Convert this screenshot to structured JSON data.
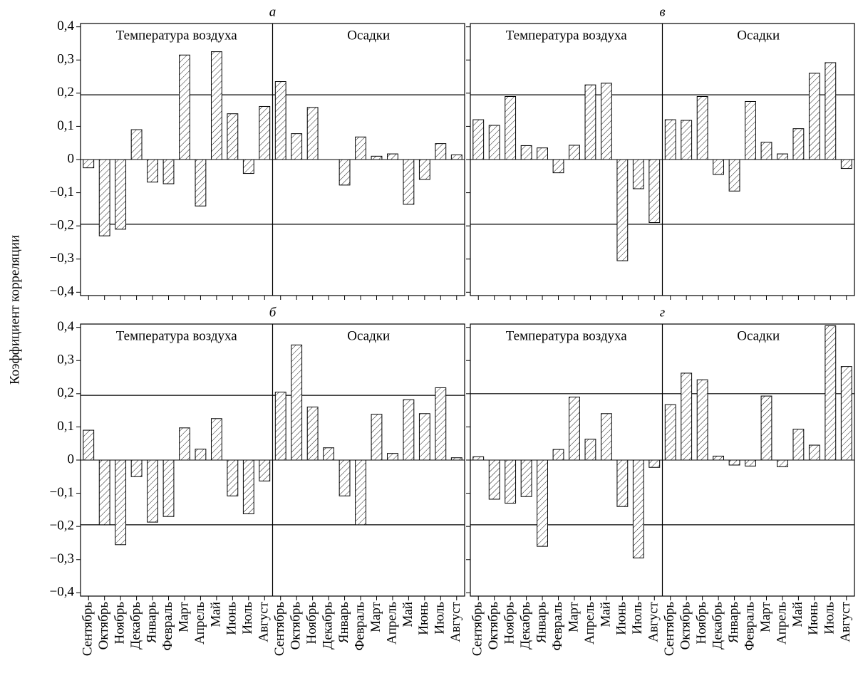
{
  "ylabel": "Коэффициент корреляции",
  "chart_data": [
    {
      "type": "bar",
      "title": "а",
      "series": [
        {
          "name": "Температура воздуха",
          "values": [
            -0.025,
            -0.23,
            -0.21,
            0.09,
            -0.068,
            -0.073,
            0.315,
            -0.14,
            0.325,
            0.138,
            -0.042,
            0.16
          ]
        },
        {
          "name": "Осадки",
          "values": [
            0.235,
            0.078,
            0.157,
            0,
            -0.077,
            0.068,
            0.01,
            0.017,
            -0.135,
            -0.06,
            0.048,
            0.014
          ]
        }
      ],
      "ylim": [
        -0.41,
        0.41
      ],
      "yticks": [
        {
          "value": -0.4,
          "label": "−0,4"
        },
        {
          "value": -0.3,
          "label": "−0,3"
        },
        {
          "value": -0.2,
          "label": "−0,2"
        },
        {
          "value": -0.1,
          "label": "−0,1"
        },
        0,
        {
          "value": 0.1,
          "label": "0,1"
        },
        {
          "value": 0.2,
          "label": "0,2"
        },
        {
          "value": 0.3,
          "label": "0,3"
        },
        {
          "value": 0.4,
          "label": "0,4"
        }
      ],
      "hlines": [
        0.195,
        -0.195
      ]
    },
    {
      "type": "bar",
      "title": "в",
      "series": [
        {
          "name": "Температура воздуха",
          "values": [
            0.12,
            0.103,
            0.19,
            0.042,
            0.035,
            -0.04,
            0.043,
            0.225,
            0.23,
            -0.305,
            -0.088,
            -0.19
          ]
        },
        {
          "name": "Осадки",
          "values": [
            0.12,
            0.118,
            0.19,
            -0.045,
            -0.095,
            0.175,
            0.052,
            0.017,
            0.093,
            0.26,
            0.292,
            -0.027
          ]
        }
      ],
      "ylim": [
        -0.41,
        0.41
      ],
      "yticks": [
        -0.4,
        -0.3,
        -0.2,
        -0.1,
        0,
        0.1,
        0.2,
        0.3,
        0.4
      ],
      "hlines": [
        0.195,
        -0.195
      ]
    },
    {
      "type": "bar",
      "title": "б",
      "categories": [
        "Сентябрь",
        "Октябрь",
        "Ноябрь",
        "Декабрь",
        "Январь",
        "Февраль",
        "Март",
        "Апрель",
        "Май",
        "Июнь",
        "Июль",
        "Август"
      ],
      "series": [
        {
          "name": "Температура воздуха",
          "values": [
            0.09,
            -0.195,
            -0.255,
            -0.05,
            -0.187,
            -0.17,
            0.097,
            0.033,
            0.125,
            -0.108,
            -0.162,
            -0.063
          ]
        },
        {
          "name": "Осадки",
          "values": [
            0.205,
            0.347,
            0.16,
            0.037,
            -0.108,
            -0.195,
            0.138,
            0.02,
            0.182,
            0.14,
            0.218,
            0.007
          ]
        }
      ],
      "ylim": [
        -0.41,
        0.41
      ],
      "yticks": [
        {
          "value": -0.4,
          "label": "−0,4"
        },
        {
          "value": -0.3,
          "label": "−0,3"
        },
        {
          "value": -0.2,
          "label": "−0,2"
        },
        {
          "value": -0.1,
          "label": "−0,1"
        },
        0,
        {
          "value": 0.1,
          "label": "0,1"
        },
        {
          "value": 0.2,
          "label": "0,2"
        },
        {
          "value": 0.3,
          "label": "0,3"
        },
        {
          "value": 0.4,
          "label": "0,4"
        }
      ],
      "hlines": [
        0.195,
        -0.195
      ]
    },
    {
      "type": "bar",
      "title": "г",
      "categories": [
        "Сентябрь",
        "Октябрь",
        "Ноябрь",
        "Декабрь",
        "Январь",
        "Февраль",
        "Март",
        "Апрель",
        "Май",
        "Июнь",
        "Июль",
        "Август"
      ],
      "series": [
        {
          "name": "Температура воздуха",
          "values": [
            0.01,
            -0.118,
            -0.13,
            -0.11,
            -0.26,
            0.032,
            0.19,
            0.063,
            0.14,
            -0.14,
            -0.295,
            -0.022
          ]
        },
        {
          "name": "Осадки",
          "values": [
            0.167,
            0.262,
            0.242,
            0.012,
            -0.015,
            -0.018,
            0.193,
            -0.02,
            0.093,
            0.045,
            0.405,
            0.282
          ]
        }
      ],
      "ylim": [
        -0.41,
        0.41
      ],
      "yticks": [
        -0.4,
        -0.3,
        -0.2,
        -0.1,
        0,
        0.1,
        0.2,
        0.3,
        0.4
      ],
      "hlines": [
        0.2,
        -0.195
      ]
    }
  ]
}
